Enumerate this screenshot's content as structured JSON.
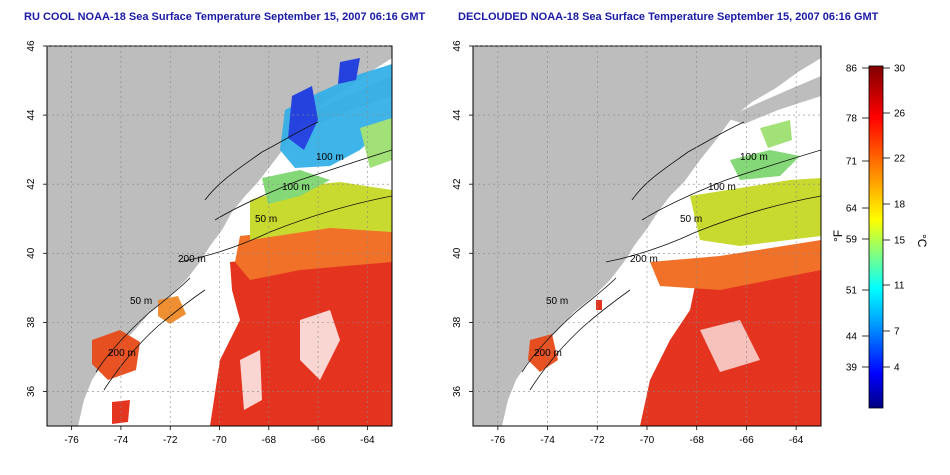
{
  "panels": [
    {
      "title": "RU COOL NOAA-18 Sea Surface Temperature September 15, 2007 06:16 GMT",
      "contour_labels": [
        "100 m",
        "100 m",
        "50 m",
        "200 m",
        "50 m",
        "200 m"
      ]
    },
    {
      "title": "DECLOUDED NOAA-18 Sea Surface Temperature September 15, 2007 06:16 GMT",
      "contour_labels": [
        "100 m",
        "100 m",
        "50 m",
        "200 m",
        "50 m",
        "200 m"
      ]
    }
  ],
  "axes": {
    "lon_ticks": [
      "-76",
      "-74",
      "-72",
      "-70",
      "-68",
      "-66",
      "-64"
    ],
    "lat_ticks": [
      "46",
      "44",
      "42",
      "40",
      "38",
      "36"
    ],
    "lon_range": [
      -77,
      -63
    ],
    "lat_range": [
      35,
      46
    ]
  },
  "colorbar": {
    "f_label": "°F",
    "c_label": "°C",
    "f_ticks": [
      "86",
      "78",
      "71",
      "64",
      "59",
      "51",
      "44",
      "39"
    ],
    "c_ticks": [
      "30",
      "26",
      "22",
      "18",
      "15",
      "11",
      "7",
      "4"
    ],
    "colors": [
      "#000080",
      "#0000ff",
      "#00a0ff",
      "#00ffff",
      "#80ff80",
      "#ffff00",
      "#ff8000",
      "#ff0000",
      "#800000"
    ]
  },
  "colors": {
    "land": "#bdbdbd",
    "ocean": "#ffffff",
    "title": "#1a1aa6"
  }
}
